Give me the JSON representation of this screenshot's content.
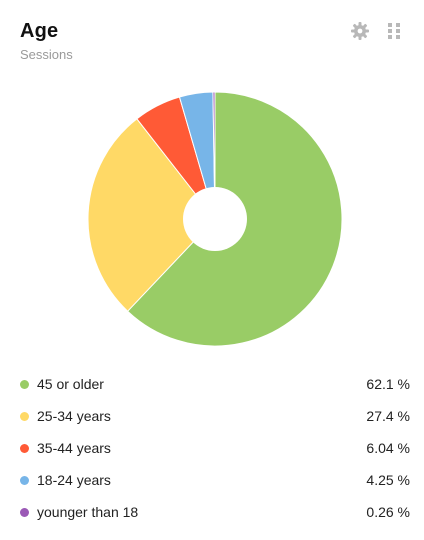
{
  "widget": {
    "title": "Age",
    "subtitle": "Sessions",
    "tools": {
      "settings_icon": "gear-icon",
      "drag_icon": "grip-icon"
    }
  },
  "chart_data": {
    "type": "pie",
    "categories": [
      "45 or older",
      "25-34 years",
      "35-44 years",
      "18-24 years",
      "younger than 18"
    ],
    "values": [
      62.1,
      27.4,
      6.04,
      4.25,
      0.26
    ],
    "value_labels": [
      "62.1 %",
      "27.4 %",
      "6.04 %",
      "4.25 %",
      "0.26 %"
    ],
    "colors": [
      "#99cc66",
      "#ffd966",
      "#ff5a36",
      "#77b5e8",
      "#9b59b6"
    ],
    "donut_hole": true,
    "legend": "bottom"
  }
}
